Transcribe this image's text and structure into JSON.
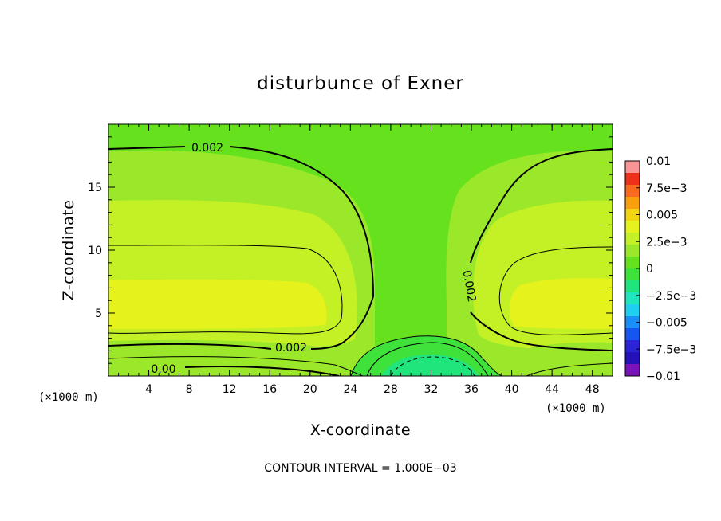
{
  "chart_data": {
    "type": "contour",
    "title": "disturbunce of Exner",
    "xlabel": "X-coordinate",
    "ylabel": "Z-coordinate",
    "x_unit": "(×1000 m)",
    "y_unit": "(×1000 m)",
    "xlim": [
      0,
      50
    ],
    "ylim": [
      0,
      20
    ],
    "x_ticks": [
      4,
      8,
      12,
      16,
      20,
      24,
      28,
      32,
      36,
      40,
      44,
      48
    ],
    "y_ticks": [
      5,
      10,
      15
    ],
    "colorbar": {
      "labels": [
        "0.01",
        "7.5e−3",
        "0.005",
        "2.5e−3",
        "0",
        "−2.5e−3",
        "−0.005",
        "−7.5e−3",
        "−0.01"
      ],
      "colors": [
        "#f99595",
        "#ee2f1a",
        "#fa6a1e",
        "#f8a00c",
        "#f1d50e",
        "#e5f21b",
        "#c4f125",
        "#9be82a",
        "#65e21d",
        "#3ee23a",
        "#20e57d",
        "#1ee6be",
        "#1ecff0",
        "#1a8ff8",
        "#1656f0",
        "#2a23d8",
        "#2412b8",
        "#7813b8"
      ]
    },
    "contour_labels": [
      "0.002",
      "0.002",
      "0.002",
      "0.00"
    ],
    "contour_interval": "CONTOUR INTERVAL = 1.000E−03",
    "grid": false
  },
  "colors": {
    "top_band": "#65e21d",
    "upper_band": "#9be82a",
    "mid_band": "#c4f125",
    "core": "#e5f21b",
    "center_column": "#65e21d",
    "bottom_neg": "#3ee23a",
    "bottom_min": "#20e57d",
    "frame": "#000000"
  }
}
